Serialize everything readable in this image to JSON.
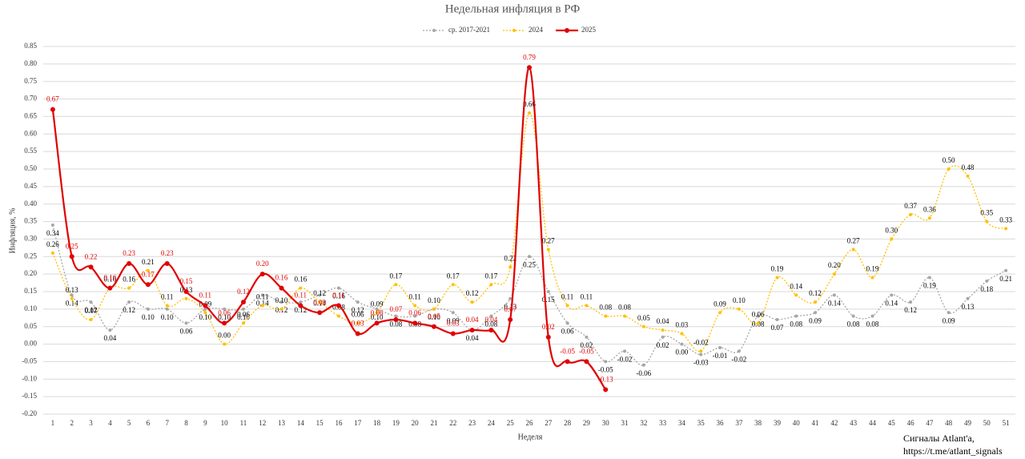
{
  "chart_data": {
    "type": "line",
    "title": "Недельная инфляция в РФ",
    "x_label": "Неделя",
    "y_label": "Инфляция, %",
    "footer": [
      "Сигналы Atlant'a,",
      "https://t.me/atlant_signals"
    ],
    "categories": [
      1,
      2,
      3,
      4,
      5,
      6,
      7,
      8,
      9,
      10,
      11,
      12,
      13,
      14,
      15,
      16,
      17,
      18,
      19,
      20,
      21,
      22,
      23,
      24,
      25,
      26,
      27,
      28,
      29,
      30,
      31,
      32,
      33,
      34,
      35,
      36,
      37,
      38,
      39,
      40,
      41,
      42,
      43,
      44,
      45,
      46,
      47,
      48,
      49,
      50,
      51
    ],
    "ylim": [
      -0.2,
      0.85
    ],
    "yticks": [
      {
        "value": -0.2,
        "label": "-0.20"
      },
      -0.15,
      {
        "value": -0.1,
        "label": "-0.10"
      },
      -0.05,
      {
        "value": 0,
        "label": "0.00"
      },
      0.05,
      {
        "value": 0.1,
        "label": "0.10"
      },
      0.15,
      {
        "value": 0.2,
        "label": "0.20"
      },
      0.25,
      {
        "value": 0.3,
        "label": "0.30"
      },
      0.35,
      {
        "value": 0.4,
        "label": "0.40"
      },
      0.45,
      {
        "value": 0.5,
        "label": "0.50"
      },
      0.55,
      {
        "value": 0.6,
        "label": "0.60"
      },
      0.65,
      {
        "value": 0.7,
        "label": "0.70"
      },
      0.75,
      {
        "value": 0.8,
        "label": "0.80"
      },
      0.85
    ],
    "grid": true,
    "series": [
      {
        "name": "ср. 2017-2021",
        "color": "#a6a6a6",
        "style": "dotted",
        "values": [
          0.34,
          0.14,
          0.12,
          0.04,
          0.12,
          0.1,
          0.1,
          0.06,
          0.1,
          0.1,
          0.1,
          0.14,
          0.12,
          0.12,
          0.14,
          0.16,
          0.12,
          0.1,
          0.08,
          0.08,
          0.1,
          0.09,
          0.04,
          0.08,
          0.13,
          0.25,
          0.15,
          0.06,
          0.02,
          -0.05,
          -0.02,
          -0.06,
          0.02,
          0,
          -0.03,
          -0.01,
          -0.02,
          0.08,
          0.07,
          0.08,
          0.09,
          0.14,
          0.08,
          0.08,
          0.14,
          0.12,
          0.19,
          0.09,
          0.13,
          0.18,
          0.21
        ],
        "value_labels": [
          "0.34",
          "0.14",
          "0.12",
          "0.04",
          "0.12",
          "0.10",
          "0.10",
          "0.06",
          "0.10",
          "0.10",
          "0.10",
          "0.14",
          "0.12",
          "0.12",
          "0.14",
          "0.16",
          "0.12",
          "0.10",
          "0.08",
          "0.08",
          "0.10",
          "0.09",
          "0.04",
          "0.08",
          "0.13",
          "0.25",
          "0.15",
          "0.06",
          "0.02",
          "-0.05",
          "-0.02",
          "-0.06",
          "0.02",
          "0.00",
          "-0.03",
          "-0.01",
          "-0.02",
          "0.08",
          "0.07",
          "0.08",
          "0.09",
          "0.14",
          "0.08",
          "0.08",
          "0.14",
          "0.12",
          "0.19",
          "0.09",
          "0.13",
          "0.18",
          "0.21"
        ]
      },
      {
        "name": "2024",
        "color": "#ffc000",
        "style": "dotted",
        "values": [
          0.26,
          0.13,
          0.07,
          0.16,
          0.16,
          0.21,
          0.11,
          0.13,
          0.09,
          0,
          0.06,
          0.11,
          0.1,
          0.16,
          0.12,
          0.08,
          0.06,
          0.09,
          0.17,
          0.11,
          0.1,
          0.17,
          0.12,
          0.17,
          0.22,
          0.66,
          0.27,
          0.11,
          0.11,
          0.08,
          0.08,
          0.05,
          0.04,
          0.03,
          -0.02,
          0.09,
          0.1,
          0.06,
          0.19,
          0.14,
          0.12,
          0.2,
          0.27,
          0.19,
          0.3,
          0.37,
          0.36,
          0.5,
          0.48,
          0.35,
          0.33
        ],
        "value_labels": [
          "0.26",
          "0.13",
          "0.07",
          "0.16",
          "0.16",
          "0.21",
          "0.11",
          "0.13",
          "0.09",
          "0.00",
          "0.06",
          "0.11",
          "0.10",
          "0.16",
          "0.12",
          "0.08",
          "0.06",
          "0.09",
          "0.17",
          "0.11",
          "0.10",
          "0.17",
          "0.12",
          "0.17",
          "0.22",
          "0.66",
          "0.27",
          "0.11",
          "0.11",
          "0.08",
          "0.08",
          "0.05",
          "0.04",
          "0.03",
          "-0.02",
          "0.09",
          "0.10",
          "0.06",
          "0.19",
          "0.14",
          "0.12",
          "0.20",
          "0.27",
          "0.19",
          "0.30",
          "0.37",
          "0.36",
          "0.50",
          "0.48",
          "0.35",
          "0.33"
        ]
      },
      {
        "name": "2025",
        "color": "#e00000",
        "style": "solid",
        "values": [
          0.67,
          0.25,
          0.22,
          0.16,
          0.23,
          0.17,
          0.23,
          0.15,
          0.11,
          0.06,
          0.12,
          0.2,
          0.16,
          0.11,
          0.09,
          0.11,
          0.03,
          0.06,
          0.07,
          0.06,
          0.05,
          0.03,
          0.04,
          0.04,
          0.07,
          0.79,
          0.02,
          -0.05,
          -0.05,
          -0.13,
          null,
          null,
          null,
          null,
          null,
          null,
          null,
          null,
          null,
          null,
          null,
          null,
          null,
          null,
          null,
          null,
          null,
          null,
          null,
          null,
          null
        ],
        "value_labels": [
          "0.67",
          "0.25",
          "0.22",
          "0.16",
          "0.23",
          "0.17",
          "0.23",
          "0.15",
          "0.11",
          "0.06",
          "0.12",
          "0.20",
          "0.16",
          "0.11",
          "0.09",
          "0.11",
          "0.03",
          "0.06",
          "0.07",
          "0.06",
          "0.05",
          "0.03",
          "0.04",
          "0.04",
          "0.07",
          "0.79",
          "0.02",
          "-0.05",
          "-0.05",
          "-0.13",
          null,
          null,
          null,
          null,
          null,
          null,
          null,
          null,
          null,
          null,
          null,
          null,
          null,
          null,
          null,
          null,
          null,
          null,
          null,
          null,
          null
        ]
      }
    ]
  }
}
